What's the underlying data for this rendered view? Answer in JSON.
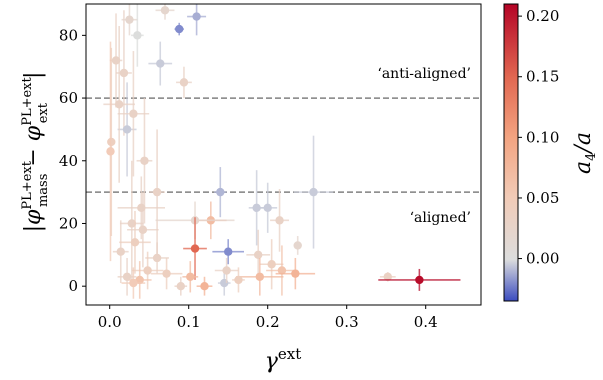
{
  "chart_data": {
    "type": "scatter",
    "xlabel": "γ^ext",
    "ylabel": "|φ_mass^PL+ext − φ_ext^PL+ext|",
    "xlim": [
      -0.03,
      0.47
    ],
    "ylim": [
      -6,
      90
    ],
    "x_ticks": [
      "0.0",
      "0.1",
      "0.2",
      "0.3",
      "0.4"
    ],
    "x_tick_values": [
      0.0,
      0.1,
      0.2,
      0.3,
      0.4
    ],
    "y_ticks": [
      "0",
      "20",
      "40",
      "60",
      "80"
    ],
    "y_tick_values": [
      0,
      20,
      40,
      60,
      80
    ],
    "colorbar": {
      "label": "a4/a",
      "range": [
        -0.035,
        0.21
      ],
      "ticks": [
        "0.00",
        "0.05",
        "0.10",
        "0.15",
        "0.20"
      ],
      "tick_values": [
        0.0,
        0.05,
        0.1,
        0.15,
        0.2
      ],
      "colormap": "coolwarm"
    },
    "reference_lines": [
      {
        "y": 60,
        "label": "‘anti-aligned’"
      },
      {
        "y": 30,
        "label": "‘aligned’"
      }
    ],
    "points": [
      {
        "x": 0.008,
        "y": 72,
        "xerr": 0.008,
        "yerr": 15,
        "c": 0.03
      },
      {
        "x": 0.018,
        "y": 68,
        "xerr": 0.01,
        "yerr": 20,
        "c": 0.03
      },
      {
        "x": 0.025,
        "y": 85,
        "xerr": 0.01,
        "yerr": 5,
        "c": 0.02
      },
      {
        "x": 0.035,
        "y": 80,
        "xerr": 0.008,
        "yerr": 10,
        "c": 0.0
      },
      {
        "x": 0.07,
        "y": 88,
        "xerr": 0.012,
        "yerr": 3,
        "c": 0.02
      },
      {
        "x": 0.088,
        "y": 82,
        "xerr": 0.006,
        "yerr": 2,
        "c": -0.02
      },
      {
        "x": 0.11,
        "y": 86,
        "xerr": 0.012,
        "yerr": 6,
        "c": -0.012
      },
      {
        "x": 0.064,
        "y": 71,
        "xerr": 0.015,
        "yerr": 7,
        "c": -0.005
      },
      {
        "x": 0.094,
        "y": 65,
        "xerr": 0.01,
        "yerr": 5,
        "c": 0.03
      },
      {
        "x": 0.022,
        "y": 50,
        "xerr": 0.012,
        "yerr": 15,
        "c": -0.005
      },
      {
        "x": 0.012,
        "y": 58,
        "xerr": 0.02,
        "yerr": 25,
        "c": 0.03
      },
      {
        "x": 0.03,
        "y": 55,
        "xerr": 0.02,
        "yerr": 20,
        "c": 0.03
      },
      {
        "x": 0.002,
        "y": 46,
        "xerr": 0.002,
        "yerr": 30,
        "c": 0.04
      },
      {
        "x": 0.001,
        "y": 43,
        "xerr": 0.003,
        "yerr": 35,
        "c": 0.05
      },
      {
        "x": 0.044,
        "y": 40,
        "xerr": 0.01,
        "yerr": 20,
        "c": 0.03
      },
      {
        "x": 0.06,
        "y": 30,
        "xerr": 0.01,
        "yerr": 20,
        "c": 0.03
      },
      {
        "x": 0.04,
        "y": 25,
        "xerr": 0.03,
        "yerr": 10,
        "c": 0.03
      },
      {
        "x": 0.028,
        "y": 20,
        "xerr": 0.015,
        "yerr": 20,
        "c": 0.03
      },
      {
        "x": 0.14,
        "y": 30,
        "xerr": 0.008,
        "yerr": 8,
        "c": -0.01
      },
      {
        "x": 0.186,
        "y": 25,
        "xerr": 0.01,
        "yerr": 12,
        "c": -0.005
      },
      {
        "x": 0.2,
        "y": 25,
        "xerr": 0.012,
        "yerr": 8,
        "c": -0.005
      },
      {
        "x": 0.258,
        "y": 30,
        "xerr": 0.025,
        "yerr": 18,
        "c": -0.005
      },
      {
        "x": 0.128,
        "y": 21,
        "xerr": 0.02,
        "yerr": 6,
        "c": 0.07
      },
      {
        "x": 0.108,
        "y": 21,
        "xerr": 0.05,
        "yerr": 6,
        "c": 0.02
      },
      {
        "x": 0.215,
        "y": 21,
        "xerr": 0.012,
        "yerr": 10,
        "c": 0.03
      },
      {
        "x": 0.238,
        "y": 13,
        "xerr": 0.005,
        "yerr": 3,
        "c": 0.02
      },
      {
        "x": 0.108,
        "y": 12,
        "xerr": 0.015,
        "yerr": 10,
        "c": 0.15
      },
      {
        "x": 0.15,
        "y": 11,
        "xerr": 0.02,
        "yerr": 4,
        "c": -0.02
      },
      {
        "x": 0.145,
        "y": 1,
        "xerr": 0.008,
        "yerr": 4,
        "c": -0.005
      },
      {
        "x": 0.148,
        "y": 5,
        "xerr": 0.015,
        "yerr": 4,
        "c": 0.03
      },
      {
        "x": 0.188,
        "y": 10,
        "xerr": 0.015,
        "yerr": 8,
        "c": 0.03
      },
      {
        "x": 0.205,
        "y": 7,
        "xerr": 0.015,
        "yerr": 8,
        "c": 0.04
      },
      {
        "x": 0.218,
        "y": 5,
        "xerr": 0.02,
        "yerr": 8,
        "c": 0.06
      },
      {
        "x": 0.235,
        "y": 4,
        "xerr": 0.025,
        "yerr": 5,
        "c": 0.08
      },
      {
        "x": 0.19,
        "y": 3,
        "xerr": 0.03,
        "yerr": 6,
        "c": 0.07
      },
      {
        "x": 0.163,
        "y": 2,
        "xerr": 0.008,
        "yerr": 4,
        "c": 0.04
      },
      {
        "x": 0.12,
        "y": 0,
        "xerr": 0.01,
        "yerr": 3,
        "c": 0.08
      },
      {
        "x": 0.102,
        "y": 3,
        "xerr": 0.01,
        "yerr": 5,
        "c": 0.07
      },
      {
        "x": 0.09,
        "y": 0,
        "xerr": 0.008,
        "yerr": 3,
        "c": 0.03
      },
      {
        "x": 0.072,
        "y": 4,
        "xerr": 0.02,
        "yerr": 5,
        "c": 0.04
      },
      {
        "x": 0.06,
        "y": 9,
        "xerr": 0.015,
        "yerr": 5,
        "c": 0.03
      },
      {
        "x": 0.048,
        "y": 5,
        "xerr": 0.02,
        "yerr": 6,
        "c": 0.04
      },
      {
        "x": 0.038,
        "y": 2,
        "xerr": 0.015,
        "yerr": 6,
        "c": 0.06
      },
      {
        "x": 0.03,
        "y": 1,
        "xerr": 0.015,
        "yerr": 5,
        "c": 0.05
      },
      {
        "x": 0.022,
        "y": 3,
        "xerr": 0.012,
        "yerr": 6,
        "c": 0.03
      },
      {
        "x": 0.014,
        "y": 11,
        "xerr": 0.01,
        "yerr": 10,
        "c": 0.03
      },
      {
        "x": 0.032,
        "y": 14,
        "xerr": 0.02,
        "yerr": 10,
        "c": 0.04
      },
      {
        "x": 0.042,
        "y": 18,
        "xerr": 0.02,
        "yerr": 12,
        "c": 0.03
      },
      {
        "x": 0.352,
        "y": 3,
        "xerr": 0.01,
        "yerr": 1.5,
        "c": 0.035
      },
      {
        "x": 0.392,
        "y": 2,
        "xerr": 0.052,
        "yerr": 3.5,
        "c": 0.205
      }
    ]
  }
}
